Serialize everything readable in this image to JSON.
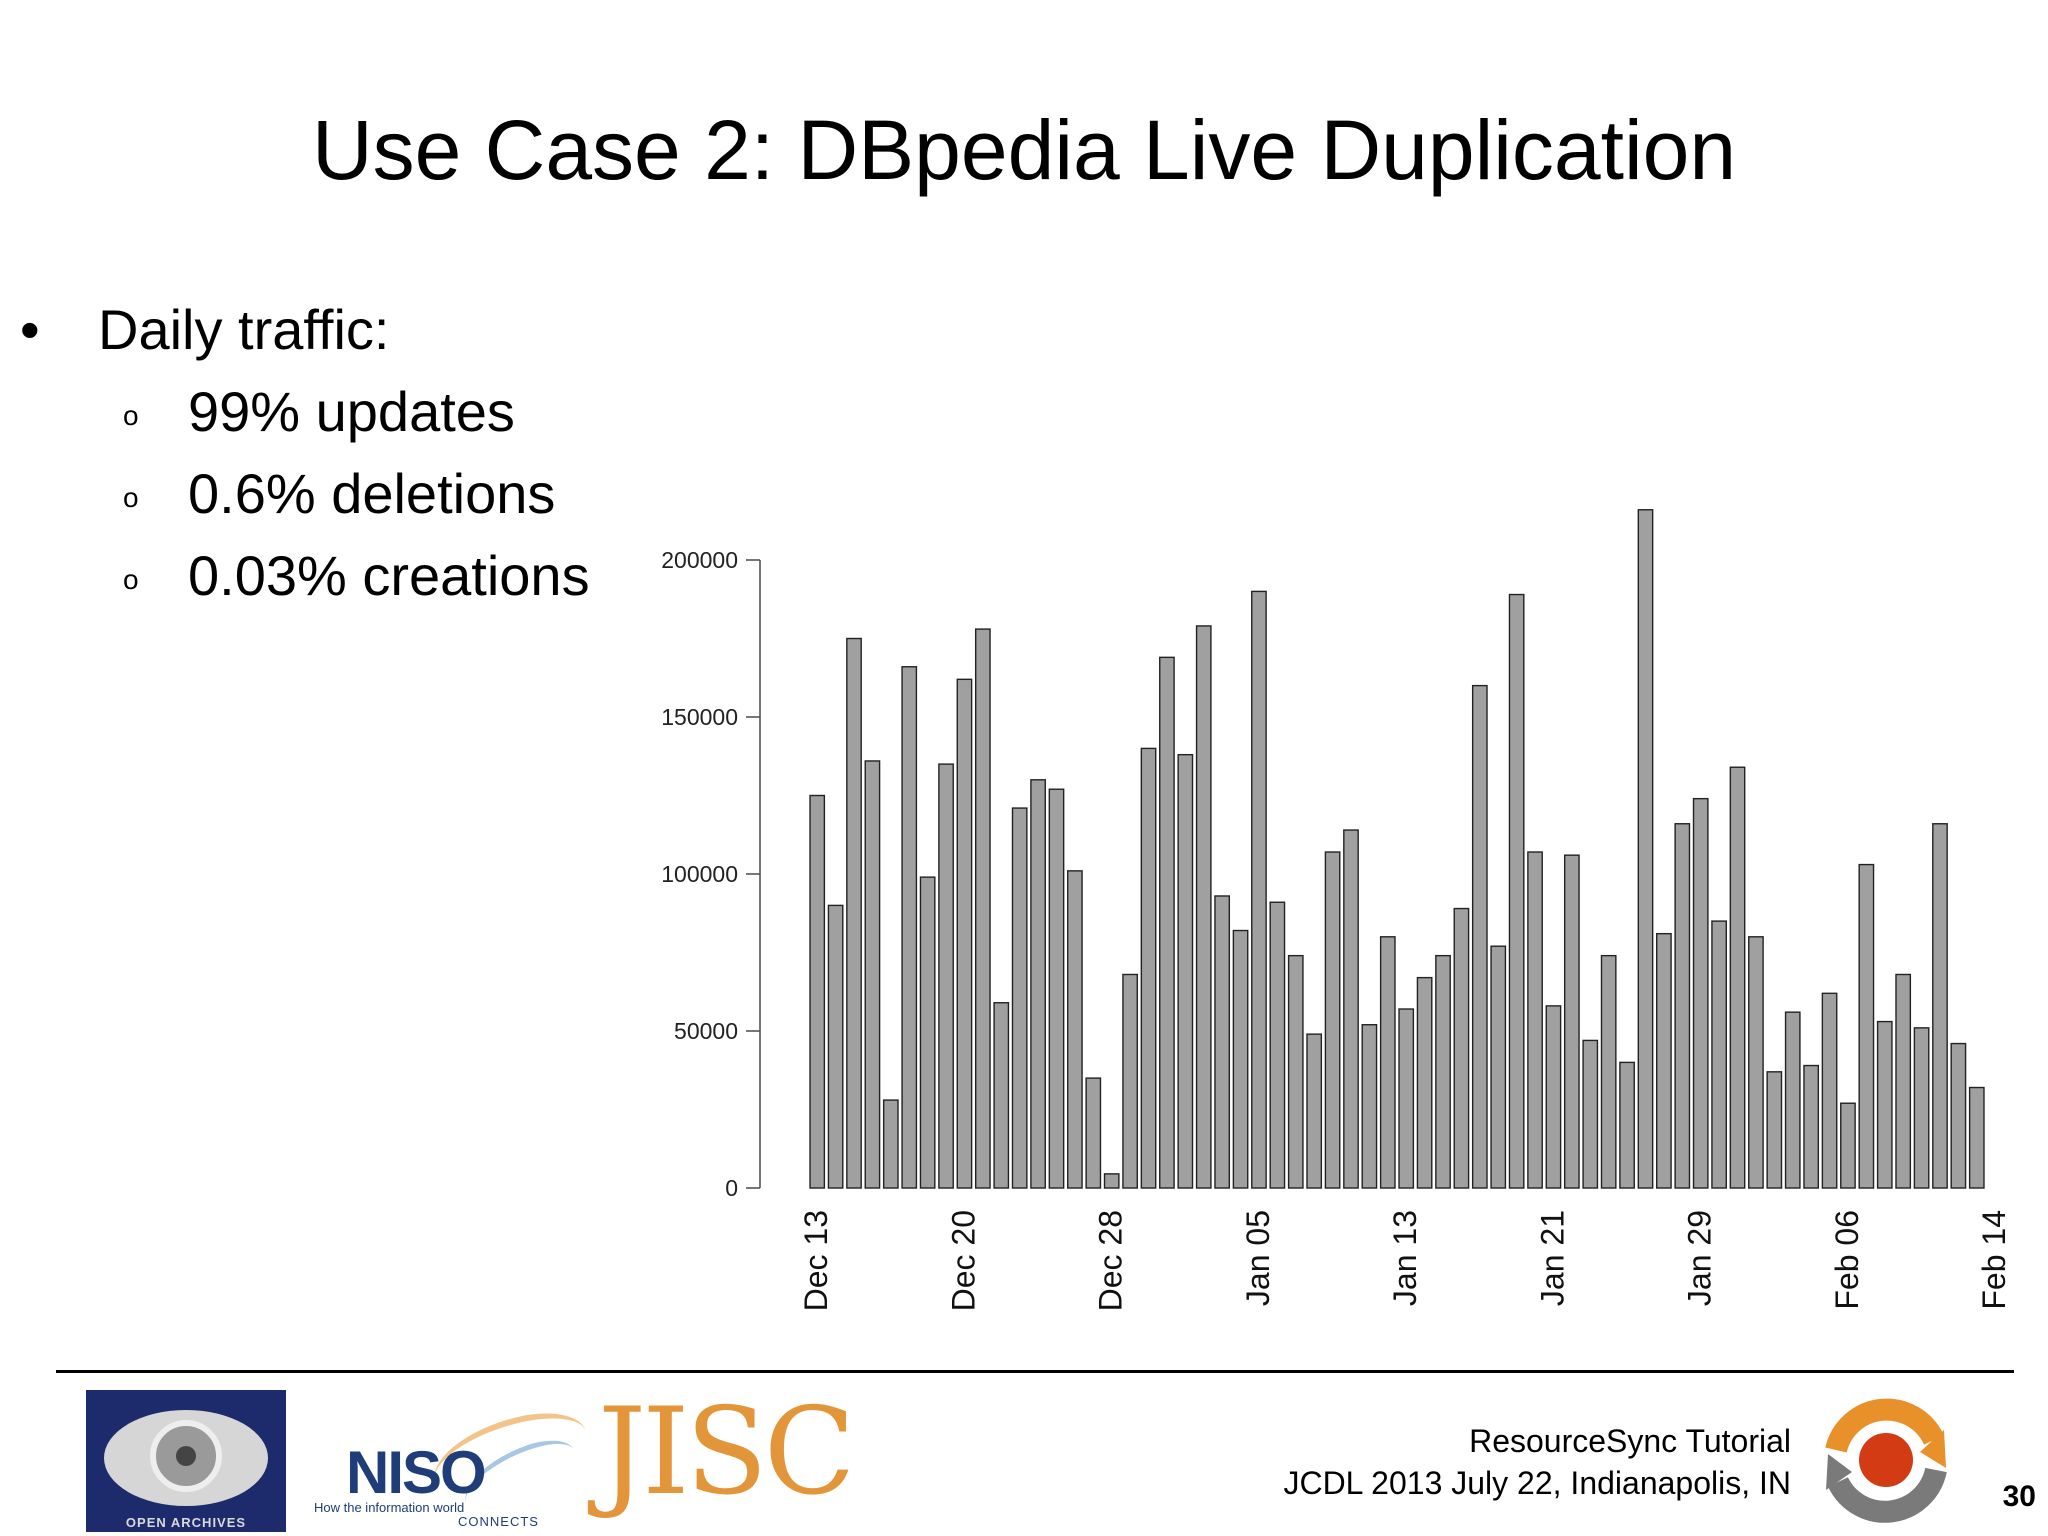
{
  "slide": {
    "title": "Use Case 2: DBpedia Live Duplication",
    "bullet": {
      "marker": "•",
      "text": "Daily traffic:",
      "subitems": [
        {
          "marker": "o",
          "text": "99% updates"
        },
        {
          "marker": "o",
          "text": "0.6% deletions"
        },
        {
          "marker": "o",
          "text": "0.03% creations"
        }
      ]
    }
  },
  "chart_data": {
    "type": "bar",
    "title": "",
    "xlabel": "",
    "ylabel": "",
    "ylim": [
      0,
      210000
    ],
    "yticks": [
      0,
      50000,
      100000,
      150000,
      200000
    ],
    "ytick_labels": [
      "0",
      "50000",
      "100000",
      "150000",
      "200000"
    ],
    "xtick_labels": [
      "Dec 13",
      "Dec 20",
      "Dec 28",
      "Jan 05",
      "Jan 13",
      "Jan 21",
      "Jan 29",
      "Feb 06",
      "Feb 14"
    ],
    "xtick_indices": [
      0,
      8,
      16,
      24,
      32,
      40,
      48,
      56,
      64
    ],
    "bar_color": "#a0a0a0",
    "grid": false,
    "values": [
      125000,
      90000,
      175000,
      136000,
      28000,
      166000,
      99000,
      135000,
      162000,
      178000,
      59000,
      121000,
      130000,
      127000,
      101000,
      35000,
      4500,
      68000,
      140000,
      169000,
      138000,
      179000,
      93000,
      82000,
      190000,
      91000,
      74000,
      49000,
      107000,
      114000,
      52000,
      80000,
      57000,
      67000,
      74000,
      89000,
      160000,
      77000,
      189000,
      107000,
      58000,
      106000,
      47000,
      74000,
      40000,
      216000,
      81000,
      116000,
      124000,
      85000,
      134000,
      80000,
      37000,
      56000,
      39000,
      62000,
      27000,
      103000,
      53000,
      68000,
      51000,
      116000,
      46000,
      32000
    ]
  },
  "footer": {
    "oa_logo_text": "OPEN ARCHIVES",
    "niso_word": "NISO",
    "niso_tagline_1": "How the information world",
    "niso_tagline_2": "CONNECTS",
    "jisc_word": "JISC",
    "line1": "ResourceSync Tutorial",
    "line2": "JCDL 2013 July 22, Indianapolis, IN",
    "page_number": "30"
  },
  "colors": {
    "oa_logo_bg": "#1d2a6b",
    "niso_blue": "#1f3d78",
    "jisc_orange": "#e3953a",
    "rs_logo_orange": "#e8912b",
    "rs_logo_red": "#d23b14",
    "rs_logo_gray": "#7a7a7a"
  }
}
